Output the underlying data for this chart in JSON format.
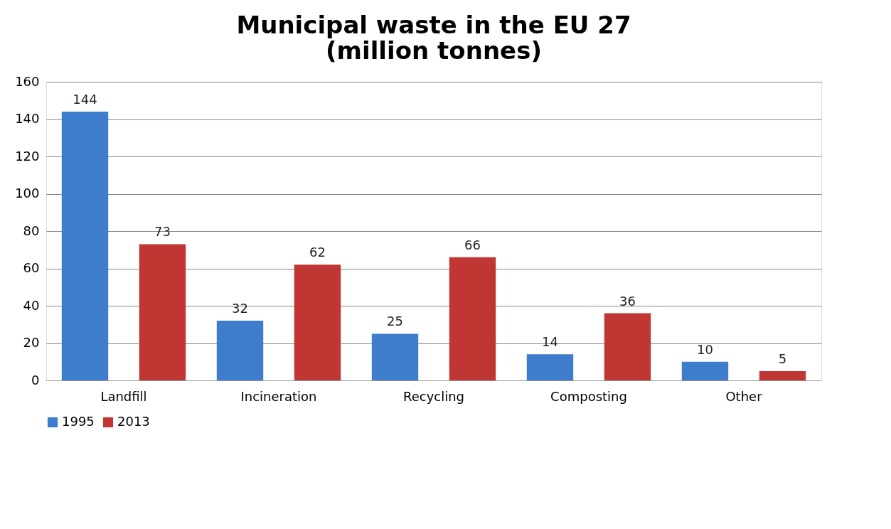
{
  "chart_data": {
    "type": "bar",
    "title": "Municipal waste in the EU 27\n(million tonnes)",
    "categories": [
      "Landfill",
      "Incineration",
      "Recycling",
      "Composting",
      "Other"
    ],
    "series": [
      {
        "name": "1995",
        "color": "#3d7dcc",
        "values": [
          144,
          32,
          25,
          14,
          10
        ]
      },
      {
        "name": "2013",
        "color": "#c03633",
        "values": [
          73,
          62,
          66,
          36,
          5
        ]
      }
    ],
    "ylim": [
      0,
      160
    ],
    "yticks": [
      0,
      20,
      40,
      60,
      80,
      100,
      120,
      140,
      160
    ],
    "grid": "y",
    "legend": "bottom",
    "data_labels": true
  }
}
